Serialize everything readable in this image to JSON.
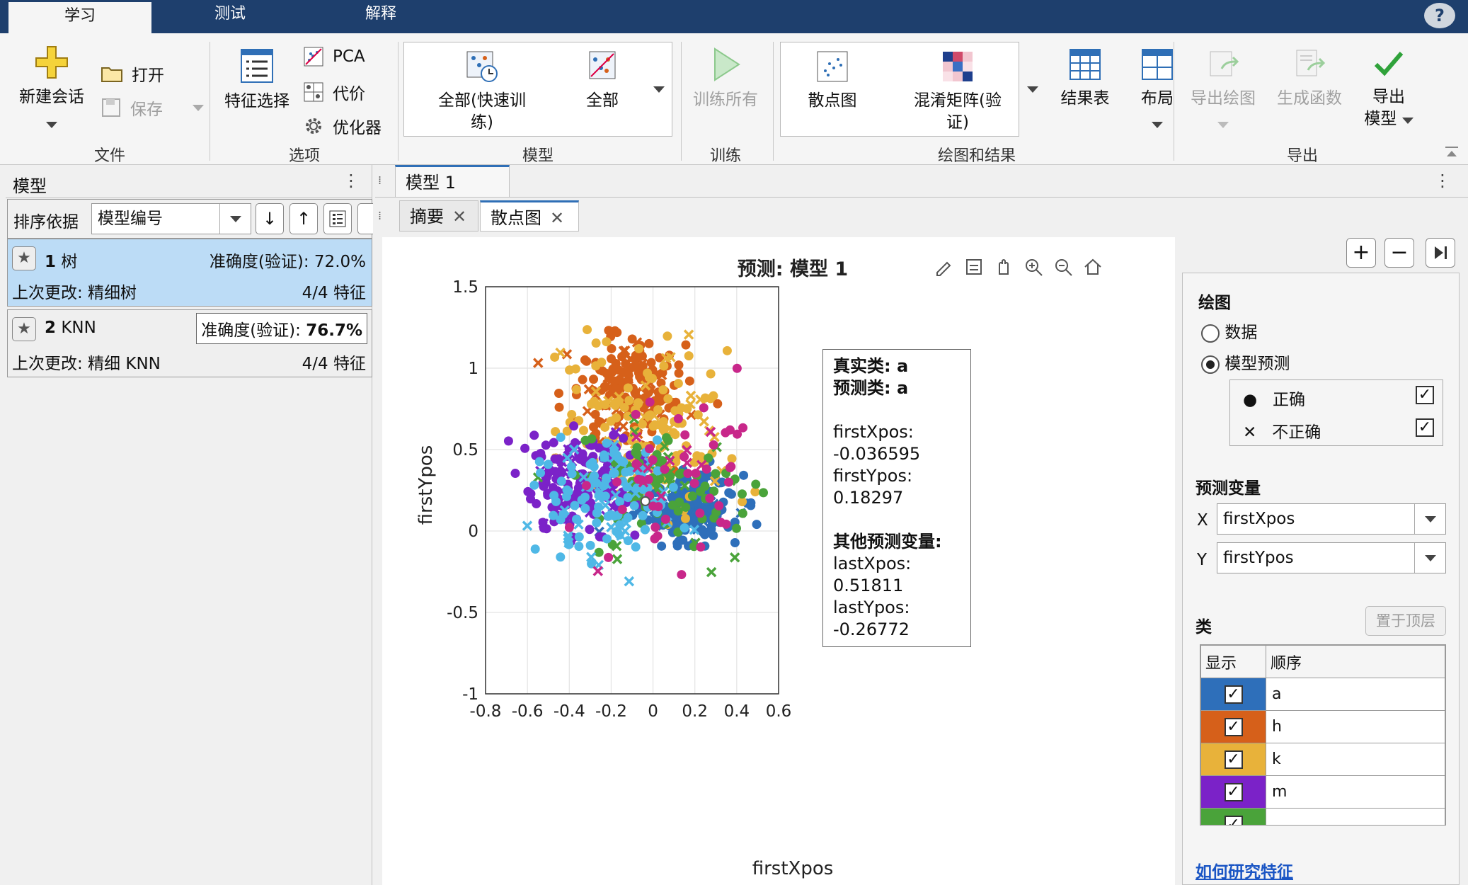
{
  "top_tabs": [
    "学习",
    "测试",
    "解释"
  ],
  "ribbon": {
    "file": {
      "new_session": "新建会话",
      "open": "打开",
      "save": "保存",
      "group": "文件"
    },
    "options": {
      "feature_selection": "特征选择",
      "pca": "PCA",
      "cost": "代价",
      "optimizer": "优化器",
      "group": "选项"
    },
    "models": {
      "all_quick_1": "全部(快速训",
      "all_quick_2": "练)",
      "all": "全部",
      "group": "模型"
    },
    "train": {
      "train_all": "训练所有",
      "group": "训练"
    },
    "plots": {
      "scatter": "散点图",
      "confusion_1": "混淆矩阵(验",
      "confusion_2": "证)",
      "results_table": "结果表",
      "layout": "布局",
      "group": "绘图和结果"
    },
    "export": {
      "export_plot": "导出绘图",
      "gen_function": "生成函数",
      "export_model_1": "导出",
      "export_model_2": "模型",
      "group": "导出"
    }
  },
  "left_panel": {
    "title": "模型",
    "sort_label": "排序依据",
    "sort_value": "模型编号",
    "models": [
      {
        "num": "1",
        "name": "树",
        "accuracy": "准确度(验证): 72.0%",
        "changed": "上次更改: 精细树",
        "features": "4/4 特征",
        "selected": true
      },
      {
        "num": "2",
        "name": "KNN",
        "accuracy_label": "准确度(验证): ",
        "accuracy_value": "76.7%",
        "changed": "上次更改: 精细 KNN",
        "features": "4/4 特征",
        "selected": false
      }
    ]
  },
  "doc_tabs": {
    "model_tab": "模型 1",
    "sub_tabs": [
      "摘要",
      "散点图"
    ]
  },
  "chart_data": {
    "type": "scatter",
    "title": "预测: 模型 1",
    "xlabel": "firstXpos",
    "ylabel": "firstYpos",
    "xlim": [
      -0.8,
      0.6
    ],
    "ylim": [
      -1,
      1.5
    ],
    "xticks": [
      "-0.8",
      "-0.6",
      "-0.4",
      "-0.2",
      "0",
      "0.2",
      "0.4",
      "0.6"
    ],
    "yticks": [
      "1.5",
      "1",
      "0.5",
      "0",
      "-0.5",
      "-1"
    ],
    "grid": true,
    "series": [
      {
        "name": "a",
        "color": "#2e6fba",
        "center": [
          0.15,
          0.15
        ],
        "spread": [
          0.12,
          0.1
        ],
        "n": 220
      },
      {
        "name": "h",
        "color": "#d6601a",
        "center": [
          -0.15,
          0.85
        ],
        "spread": [
          0.14,
          0.18
        ],
        "n": 170
      },
      {
        "name": "k",
        "color": "#e8b23a",
        "center": [
          -0.05,
          0.6
        ],
        "spread": [
          0.2,
          0.25
        ],
        "n": 160
      },
      {
        "name": "m",
        "color": "#7b22c8",
        "center": [
          -0.35,
          0.3
        ],
        "spread": [
          0.13,
          0.15
        ],
        "n": 190
      },
      {
        "name": "",
        "color": "#4aa33a",
        "center": [
          0.05,
          0.25
        ],
        "spread": [
          0.2,
          0.2
        ],
        "n": 90
      },
      {
        "name": "",
        "color": "#4fb8e6",
        "center": [
          -0.22,
          0.2
        ],
        "spread": [
          0.16,
          0.18
        ],
        "n": 130
      },
      {
        "name": "",
        "color": "#c8278a",
        "center": [
          0.15,
          0.35
        ],
        "spread": [
          0.22,
          0.25
        ],
        "n": 60
      }
    ]
  },
  "tooltip": {
    "true_class": "真实类: a",
    "pred_class": "预测类: a",
    "x": "firstXpos: -0.036595",
    "y": "firstYpos: 0.18297",
    "others": "其他预测变量:",
    "lastx": "lastXpos: 0.51811",
    "lasty": "lastYpos: -0.26772"
  },
  "side_panel": {
    "plot_title": "绘图",
    "radio_data": "数据",
    "radio_pred": "模型预测",
    "correct": "正确",
    "incorrect": "不正确",
    "predictors_title": "预测变量",
    "x_label": "X",
    "x_value": "firstXpos",
    "y_label": "Y",
    "y_value": "firstYpos",
    "class_title": "类",
    "bring_top": "置于顶层",
    "col_show": "显示",
    "col_order": "顺序",
    "classes": [
      {
        "name": "a",
        "color": "#2e6fba"
      },
      {
        "name": "h",
        "color": "#d6601a"
      },
      {
        "name": "k",
        "color": "#e8b23a"
      },
      {
        "name": "m",
        "color": "#7b22c8"
      },
      {
        "name": "",
        "color": "#4aa33a"
      }
    ],
    "link": "如何研究特征"
  }
}
